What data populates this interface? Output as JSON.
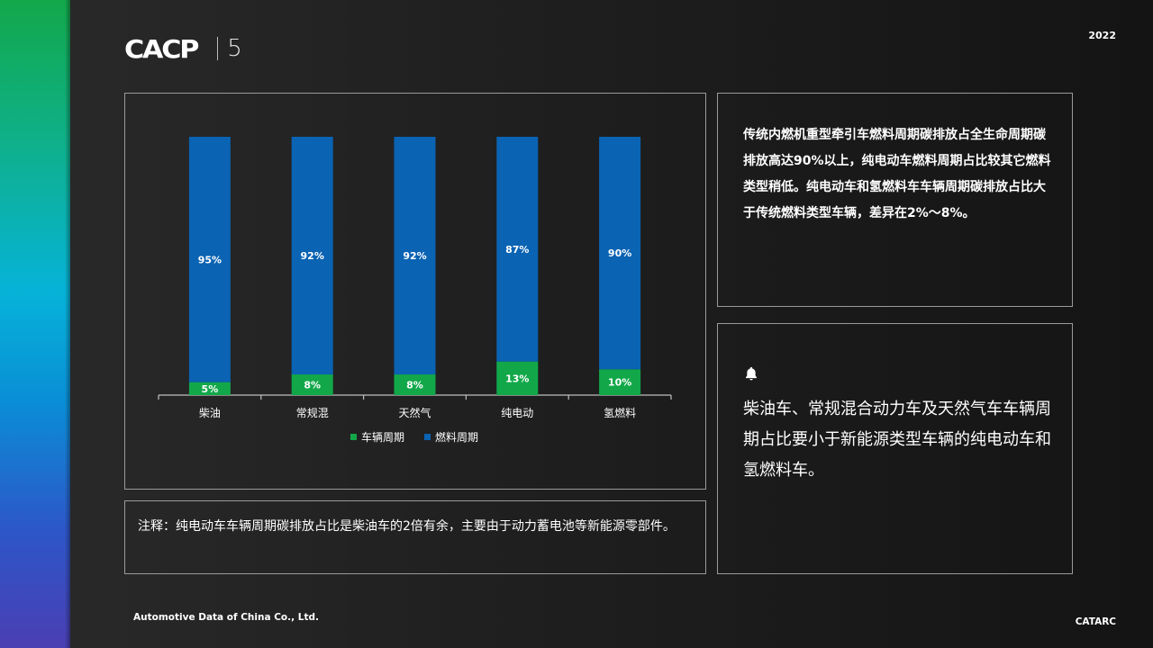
{
  "header": {
    "logo_text": "CACP",
    "logo_number": "5",
    "year": "2022"
  },
  "colors": {
    "vehicle_cycle": "#12a84a",
    "fuel_cycle": "#0a63b3",
    "panel_border": "#9a9a9a"
  },
  "chart_data": {
    "type": "bar",
    "stacked": true,
    "categories": [
      "柴油",
      "常规混",
      "天然气",
      "纯电动",
      "氢燃料"
    ],
    "series": [
      {
        "name": "车辆周期",
        "values": [
          5,
          8,
          8,
          13,
          10
        ],
        "labels": [
          "5%",
          "8%",
          "8%",
          "13%",
          "10%"
        ],
        "color": "#12a84a"
      },
      {
        "name": "燃料周期",
        "values": [
          95,
          92,
          92,
          87,
          90
        ],
        "labels": [
          "95%",
          "92%",
          "92%",
          "87%",
          "90%"
        ],
        "color": "#0a63b3"
      }
    ],
    "ylim": [
      0,
      100
    ],
    "grid": false,
    "legend": "bottom"
  },
  "top_right": {
    "text": "传统内燃机重型牵引车燃料周期碳排放占全生命周期碳排放高达90%以上，纯电动车燃料周期占比较其它燃料类型稍低。纯电动车和氢燃料车车辆周期碳排放占比大于传统燃料类型车辆，差异在2%～8%。"
  },
  "bottom_right": {
    "icon": "bell-icon",
    "text": "柴油车、常规混合动力车及天然气车车辆周期占比要小于新能源类型车辆的纯电动车和氢燃料车。"
  },
  "note": {
    "text": "注释：纯电动车车辆周期碳排放占比是柴油车的2倍有余，主要由于动力蓄电池等新能源零部件。"
  },
  "footer": {
    "left": "Automotive Data of China Co., Ltd.",
    "right": "CATARC"
  }
}
